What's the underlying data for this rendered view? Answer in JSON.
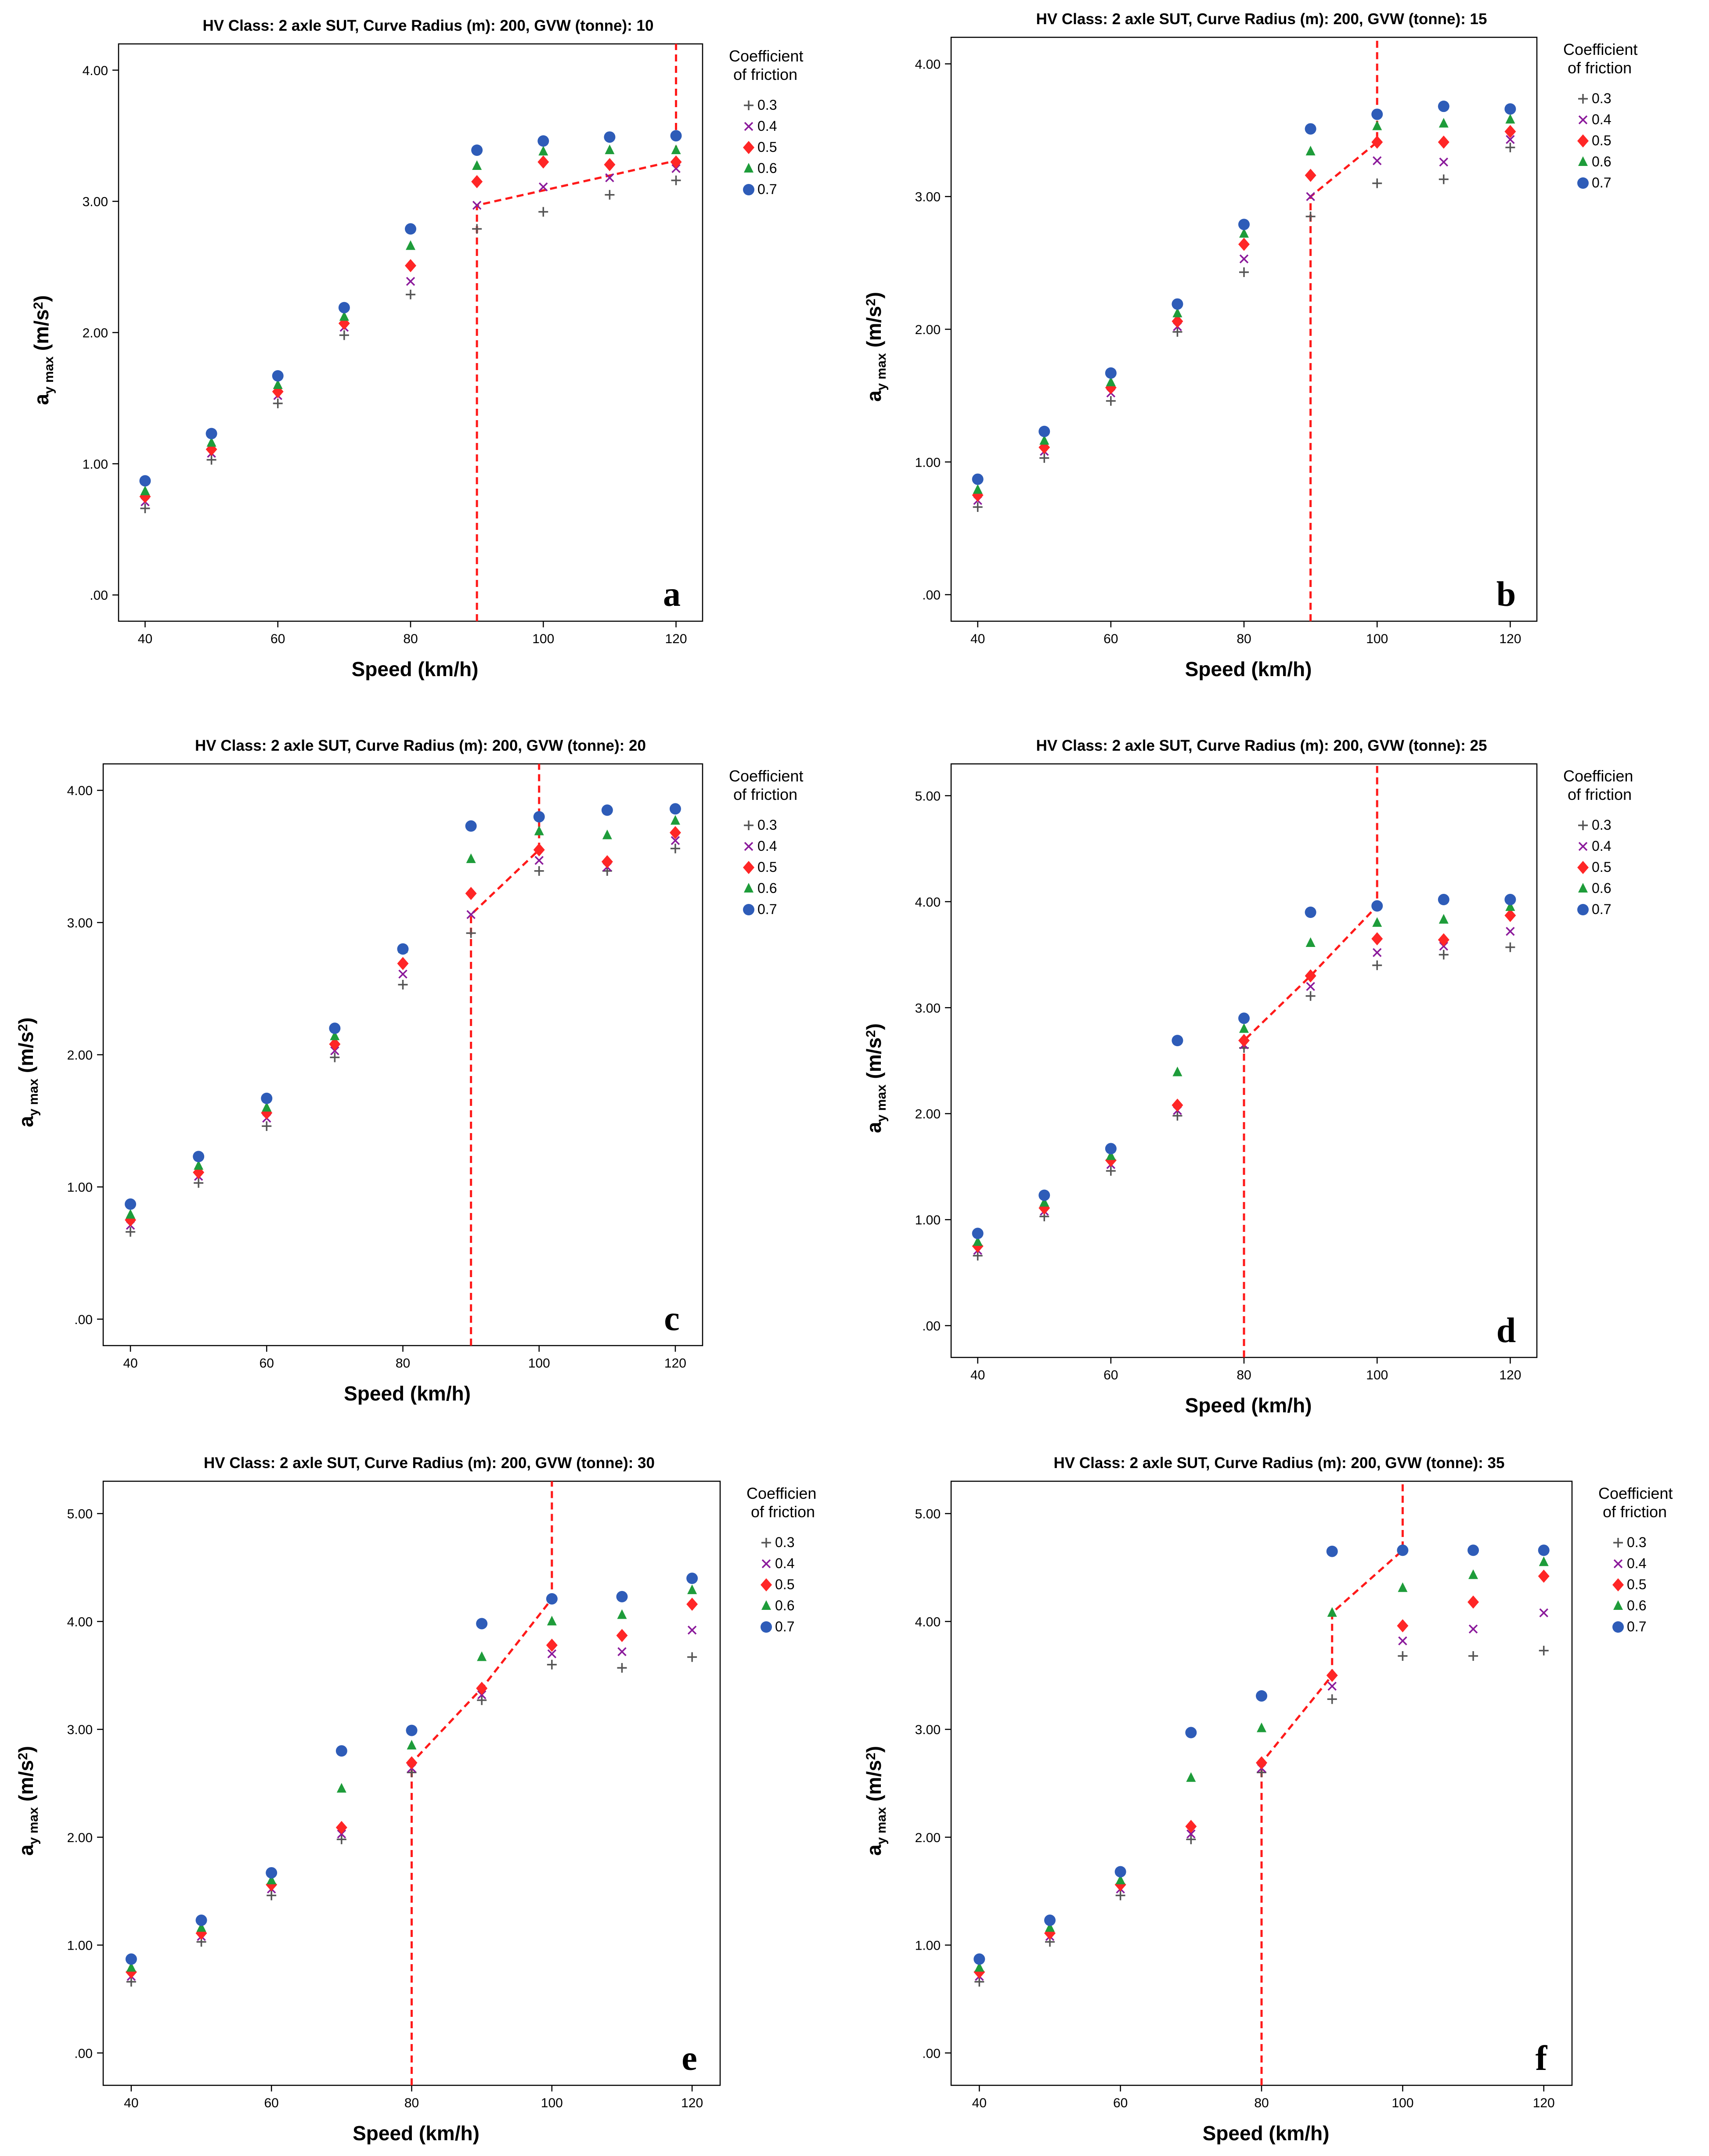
{
  "chart_data": [
    {
      "type": "scatter",
      "title": "HV Class: 2 axle SUT, Curve Radius (m): 200, GVW (tonne): 10",
      "panel_label": "a",
      "xlabel": "Speed (km/h)",
      "ylabel": "a_y max (m/s²)",
      "ylabel_main": "a",
      "ylabel_sub": "y max",
      "ylabel_unit": " (m/s",
      "ylabel_sup": "2",
      "ylabel_close": ")",
      "legend_title": [
        "Coefficient",
        "of friction"
      ],
      "xlim": [
        36,
        124
      ],
      "ylim": [
        -0.2,
        4.2
      ],
      "xticks": [
        40,
        60,
        80,
        100,
        120
      ],
      "yticks": [
        0,
        1,
        2,
        3,
        4
      ],
      "ytick_labels": [
        ".00",
        "1.00",
        "2.00",
        "3.00",
        "4.00"
      ],
      "x": [
        40,
        50,
        60,
        70,
        80,
        90,
        100,
        110,
        120
      ],
      "series": [
        {
          "name": "0.3",
          "marker": "plus",
          "color": "#555555",
          "values": [
            0.66,
            1.03,
            1.46,
            1.98,
            2.29,
            2.79,
            2.92,
            3.05,
            3.16
          ]
        },
        {
          "name": "0.4",
          "marker": "x",
          "color": "#8b1a9b",
          "values": [
            0.71,
            1.08,
            1.52,
            2.04,
            2.39,
            2.97,
            3.11,
            3.18,
            3.25
          ]
        },
        {
          "name": "0.5",
          "marker": "diamond",
          "color": "#ff2626",
          "values": [
            0.75,
            1.11,
            1.55,
            2.07,
            2.51,
            3.15,
            3.3,
            3.28,
            3.3
          ]
        },
        {
          "name": "0.6",
          "marker": "triangle",
          "color": "#1e9c3a",
          "values": [
            0.79,
            1.16,
            1.6,
            2.12,
            2.66,
            3.27,
            3.38,
            3.39,
            3.39
          ]
        },
        {
          "name": "0.7",
          "marker": "circle",
          "color": "#2e5cb8",
          "values": [
            0.87,
            1.23,
            1.67,
            2.19,
            2.79,
            3.39,
            3.46,
            3.49,
            3.5
          ]
        }
      ],
      "threshold_line": [
        [
          90,
          -0.2
        ],
        [
          90,
          2.97
        ],
        [
          120,
          3.31
        ],
        [
          120,
          4.2
        ]
      ]
    },
    {
      "type": "scatter",
      "title": "HV Class: 2 axle SUT, Curve Radius (m): 200, GVW (tonne): 15",
      "panel_label": "b",
      "xlabel": "Speed (km/h)",
      "ylabel": "a_y max (m/s²)",
      "ylabel_main": "a",
      "ylabel_sub": "y max",
      "ylabel_unit": " (m/s",
      "ylabel_sup": "2",
      "ylabel_close": ")",
      "legend_title": [
        "Coefficient",
        "of friction"
      ],
      "xlim": [
        36,
        124
      ],
      "ylim": [
        -0.2,
        4.2
      ],
      "xticks": [
        40,
        60,
        80,
        100,
        120
      ],
      "yticks": [
        0,
        1,
        2,
        3,
        4
      ],
      "ytick_labels": [
        ".00",
        "1.00",
        "2.00",
        "3.00",
        "4.00"
      ],
      "x": [
        40,
        50,
        60,
        70,
        80,
        90,
        100,
        110,
        120
      ],
      "series": [
        {
          "name": "0.3",
          "marker": "plus",
          "color": "#555555",
          "values": [
            0.66,
            1.03,
            1.46,
            1.98,
            2.43,
            2.85,
            3.1,
            3.13,
            3.37
          ]
        },
        {
          "name": "0.4",
          "marker": "x",
          "color": "#8b1a9b",
          "values": [
            0.71,
            1.08,
            1.52,
            2.02,
            2.53,
            3.0,
            3.27,
            3.26,
            3.43
          ]
        },
        {
          "name": "0.5",
          "marker": "diamond",
          "color": "#ff2626",
          "values": [
            0.75,
            1.11,
            1.56,
            2.06,
            2.64,
            3.16,
            3.41,
            3.41,
            3.49
          ]
        },
        {
          "name": "0.6",
          "marker": "triangle",
          "color": "#1e9c3a",
          "values": [
            0.79,
            1.16,
            1.6,
            2.12,
            2.72,
            3.34,
            3.53,
            3.55,
            3.58
          ]
        },
        {
          "name": "0.7",
          "marker": "circle",
          "color": "#2e5cb8",
          "values": [
            0.87,
            1.23,
            1.67,
            2.19,
            2.79,
            3.51,
            3.62,
            3.68,
            3.66
          ]
        }
      ],
      "threshold_line": [
        [
          90,
          -0.2
        ],
        [
          90,
          3.0
        ],
        [
          100,
          3.41
        ],
        [
          100,
          4.2
        ]
      ]
    },
    {
      "type": "scatter",
      "title": "HV Class: 2 axle SUT, Curve Radius (m): 200, GVW (tonne): 20",
      "panel_label": "c",
      "xlabel": "Speed (km/h)",
      "ylabel": "a_y max (m/s²)",
      "ylabel_main": "a",
      "ylabel_sub": "y max",
      "ylabel_unit": " (m/s",
      "ylabel_sup": "2",
      "ylabel_close": ")",
      "legend_title": [
        "Coefficient",
        "of friction"
      ],
      "xlim": [
        36,
        124
      ],
      "ylim": [
        -0.2,
        4.2
      ],
      "xticks": [
        40,
        60,
        80,
        100,
        120
      ],
      "yticks": [
        0,
        1,
        2,
        3,
        4
      ],
      "ytick_labels": [
        ".00",
        "1.00",
        "2.00",
        "3.00",
        "4.00"
      ],
      "x": [
        40,
        50,
        60,
        70,
        80,
        90,
        100,
        110,
        120
      ],
      "series": [
        {
          "name": "0.3",
          "marker": "plus",
          "color": "#555555",
          "values": [
            0.66,
            1.03,
            1.46,
            1.98,
            2.53,
            2.92,
            3.39,
            3.39,
            3.56
          ]
        },
        {
          "name": "0.4",
          "marker": "x",
          "color": "#8b1a9b",
          "values": [
            0.71,
            1.08,
            1.52,
            2.03,
            2.61,
            3.06,
            3.47,
            3.42,
            3.62
          ]
        },
        {
          "name": "0.5",
          "marker": "diamond",
          "color": "#ff2626",
          "values": [
            0.75,
            1.11,
            1.56,
            2.08,
            2.69,
            3.22,
            3.55,
            3.46,
            3.68
          ]
        },
        {
          "name": "0.6",
          "marker": "triangle",
          "color": "#1e9c3a",
          "values": [
            0.79,
            1.16,
            1.6,
            2.14,
            2.8,
            3.48,
            3.69,
            3.66,
            3.77
          ]
        },
        {
          "name": "0.7",
          "marker": "circle",
          "color": "#2e5cb8",
          "values": [
            0.87,
            1.23,
            1.67,
            2.2,
            2.8,
            3.73,
            3.8,
            3.85,
            3.86
          ]
        }
      ],
      "threshold_line": [
        [
          90,
          -0.2
        ],
        [
          90,
          3.06
        ],
        [
          100,
          3.55
        ],
        [
          100,
          4.2
        ]
      ]
    },
    {
      "type": "scatter",
      "title": "HV Class: 2 axle SUT, Curve Radius (m): 200, GVW (tonne): 25",
      "panel_label": "d",
      "xlabel": "Speed (km/h)",
      "ylabel": "a_y max (m/s²)",
      "ylabel_main": "a",
      "ylabel_sub": "y max",
      "ylabel_unit": " (m/s",
      "ylabel_sup": "2",
      "ylabel_close": ")",
      "legend_title": [
        "Coefficien",
        "of friction"
      ],
      "xlim": [
        36,
        124
      ],
      "ylim": [
        -0.3,
        5.3
      ],
      "xticks": [
        40,
        60,
        80,
        100,
        120
      ],
      "yticks": [
        0,
        1,
        2,
        3,
        4,
        5
      ],
      "ytick_labels": [
        ".00",
        "1.00",
        "2.00",
        "3.00",
        "4.00",
        "5.00"
      ],
      "x": [
        40,
        50,
        60,
        70,
        80,
        90,
        100,
        110,
        120
      ],
      "series": [
        {
          "name": "0.3",
          "marker": "plus",
          "color": "#555555",
          "values": [
            0.66,
            1.03,
            1.46,
            1.98,
            2.62,
            3.11,
            3.4,
            3.5,
            3.57
          ]
        },
        {
          "name": "0.4",
          "marker": "x",
          "color": "#8b1a9b",
          "values": [
            0.71,
            1.08,
            1.52,
            2.03,
            2.65,
            3.2,
            3.52,
            3.58,
            3.72
          ]
        },
        {
          "name": "0.5",
          "marker": "diamond",
          "color": "#ff2626",
          "values": [
            0.75,
            1.11,
            1.56,
            2.08,
            2.69,
            3.3,
            3.65,
            3.64,
            3.87
          ]
        },
        {
          "name": "0.6",
          "marker": "triangle",
          "color": "#1e9c3a",
          "values": [
            0.79,
            1.16,
            1.6,
            2.39,
            2.8,
            3.61,
            3.8,
            3.83,
            3.95
          ]
        },
        {
          "name": "0.7",
          "marker": "circle",
          "color": "#2e5cb8",
          "values": [
            0.87,
            1.23,
            1.67,
            2.69,
            2.9,
            3.9,
            3.96,
            4.02,
            4.02
          ]
        }
      ],
      "threshold_line": [
        [
          80,
          -0.3
        ],
        [
          80,
          2.69
        ],
        [
          90,
          3.3
        ],
        [
          100,
          3.96
        ],
        [
          100,
          5.3
        ]
      ]
    },
    {
      "type": "scatter",
      "title": "HV Class: 2 axle SUT, Curve Radius (m): 200, GVW (tonne): 30",
      "panel_label": "e",
      "xlabel": "Speed (km/h)",
      "ylabel": "a_y max (m/s²)",
      "ylabel_main": "a",
      "ylabel_sub": "y max",
      "ylabel_unit": " (m/s",
      "ylabel_sup": "2",
      "ylabel_close": ")",
      "legend_title": [
        "Coefficien",
        "of friction"
      ],
      "xlim": [
        36,
        124
      ],
      "ylim": [
        -0.3,
        5.3
      ],
      "xticks": [
        40,
        60,
        80,
        100,
        120
      ],
      "yticks": [
        0,
        1,
        2,
        3,
        4,
        5
      ],
      "ytick_labels": [
        ".00",
        "1.00",
        "2.00",
        "3.00",
        "4.00",
        "5.00"
      ],
      "x": [
        40,
        50,
        60,
        70,
        80,
        90,
        100,
        110,
        120
      ],
      "series": [
        {
          "name": "0.3",
          "marker": "plus",
          "color": "#555555",
          "values": [
            0.66,
            1.03,
            1.46,
            1.98,
            2.6,
            3.27,
            3.6,
            3.57,
            3.67
          ]
        },
        {
          "name": "0.4",
          "marker": "x",
          "color": "#8b1a9b",
          "values": [
            0.71,
            1.08,
            1.52,
            2.03,
            2.64,
            3.32,
            3.7,
            3.72,
            3.92
          ]
        },
        {
          "name": "0.5",
          "marker": "diamond",
          "color": "#ff2626",
          "values": [
            0.75,
            1.11,
            1.56,
            2.09,
            2.69,
            3.38,
            3.78,
            3.87,
            4.16
          ]
        },
        {
          "name": "0.6",
          "marker": "triangle",
          "color": "#1e9c3a",
          "values": [
            0.79,
            1.16,
            1.6,
            2.45,
            2.85,
            3.67,
            4.0,
            4.06,
            4.29
          ]
        },
        {
          "name": "0.7",
          "marker": "circle",
          "color": "#2e5cb8",
          "values": [
            0.87,
            1.23,
            1.67,
            2.8,
            2.99,
            3.98,
            4.21,
            4.23,
            4.4
          ]
        }
      ],
      "threshold_line": [
        [
          80,
          -0.3
        ],
        [
          80,
          2.69
        ],
        [
          90,
          3.38
        ],
        [
          100,
          4.21
        ],
        [
          100,
          5.3
        ]
      ]
    },
    {
      "type": "scatter",
      "title": "HV Class: 2 axle SUT, Curve Radius (m): 200, GVW (tonne): 35",
      "panel_label": "f",
      "xlabel": "Speed (km/h)",
      "ylabel": "a_y max (m/s²)",
      "ylabel_main": "a",
      "ylabel_sub": "y max",
      "ylabel_unit": " (m/s",
      "ylabel_sup": "2",
      "ylabel_close": ")",
      "legend_title": [
        "Coefficient",
        "of friction"
      ],
      "xlim": [
        36,
        124
      ],
      "ylim": [
        -0.3,
        5.3
      ],
      "xticks": [
        40,
        60,
        80,
        100,
        120
      ],
      "yticks": [
        0,
        1,
        2,
        3,
        4,
        5
      ],
      "ytick_labels": [
        ".00",
        "1.00",
        "2.00",
        "3.00",
        "4.00",
        "5.00"
      ],
      "x": [
        40,
        50,
        60,
        70,
        80,
        90,
        100,
        110,
        120
      ],
      "series": [
        {
          "name": "0.3",
          "marker": "plus",
          "color": "#555555",
          "values": [
            0.66,
            1.03,
            1.46,
            1.98,
            2.6,
            3.28,
            3.68,
            3.68,
            3.73
          ]
        },
        {
          "name": "0.4",
          "marker": "x",
          "color": "#8b1a9b",
          "values": [
            0.71,
            1.08,
            1.52,
            2.03,
            2.64,
            3.4,
            3.82,
            3.93,
            4.08
          ]
        },
        {
          "name": "0.5",
          "marker": "diamond",
          "color": "#ff2626",
          "values": [
            0.75,
            1.11,
            1.56,
            2.1,
            2.69,
            3.5,
            3.96,
            4.18,
            4.42
          ]
        },
        {
          "name": "0.6",
          "marker": "triangle",
          "color": "#1e9c3a",
          "values": [
            0.79,
            1.16,
            1.6,
            2.55,
            3.01,
            4.08,
            4.31,
            4.43,
            4.55
          ]
        },
        {
          "name": "0.7",
          "marker": "circle",
          "color": "#2e5cb8",
          "values": [
            0.87,
            1.23,
            1.68,
            2.97,
            3.31,
            4.65,
            4.66,
            4.66,
            4.66
          ]
        }
      ],
      "threshold_line": [
        [
          80,
          -0.3
        ],
        [
          80,
          2.69
        ],
        [
          90,
          3.5
        ],
        [
          90,
          4.08
        ],
        [
          100,
          4.66
        ],
        [
          100,
          5.3
        ]
      ]
    }
  ]
}
